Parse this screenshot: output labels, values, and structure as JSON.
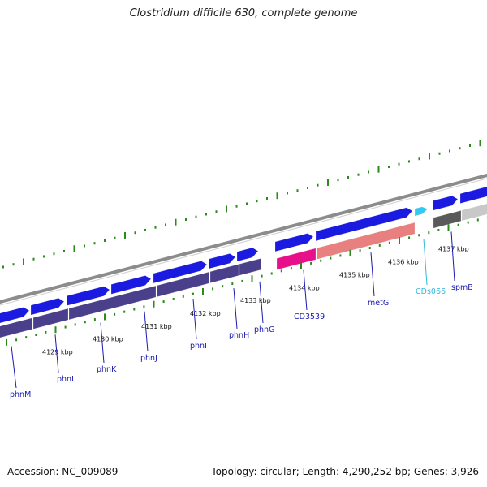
{
  "title": "Clostridium difficile 630, complete genome",
  "footer": {
    "accession": "Accession: NC_009089",
    "summary": "Topology: circular; Length: 4,290,252 bp; Genes: 3,926"
  },
  "colors": {
    "backbone": "#8c8c8c",
    "cds_forward": "#1a1ae0",
    "gene_track": "#4a3f8a",
    "highlight_cds": "#e8108a",
    "highlight_gene": "#e88080",
    "cyan_cds": "#33c8f0",
    "grey_gene": "#5a5a5a",
    "light_grey_gene": "#c8c8c8",
    "gc_ticks": "#2a8a1a",
    "ruler_ticks": "#2a8a1a",
    "label_line": "#1a1ab0",
    "label_text": "#1a1ab0",
    "cyan_label": "#33b8e0"
  },
  "ruler": [
    {
      "label": "4129 kbp"
    },
    {
      "label": "4130 kbp"
    },
    {
      "label": "4131 kbp"
    },
    {
      "label": "4132 kbp"
    },
    {
      "label": "4133 kbp"
    },
    {
      "label": "4134 kbp"
    },
    {
      "label": "4135 kbp"
    },
    {
      "label": "4136 kbp"
    },
    {
      "label": "4137 kbp"
    }
  ],
  "genes": [
    {
      "name": "phnM",
      "color": "label"
    },
    {
      "name": "phnL",
      "color": "label"
    },
    {
      "name": "phnK",
      "color": "label"
    },
    {
      "name": "phnJ",
      "color": "label"
    },
    {
      "name": "phnI",
      "color": "label"
    },
    {
      "name": "phnH",
      "color": "label"
    },
    {
      "name": "phnG",
      "color": "label"
    },
    {
      "name": "CD3539",
      "color": "label"
    },
    {
      "name": "metG",
      "color": "label"
    },
    {
      "name": "CDs066",
      "color": "cyan"
    },
    {
      "name": "spmB",
      "color": "label"
    }
  ]
}
